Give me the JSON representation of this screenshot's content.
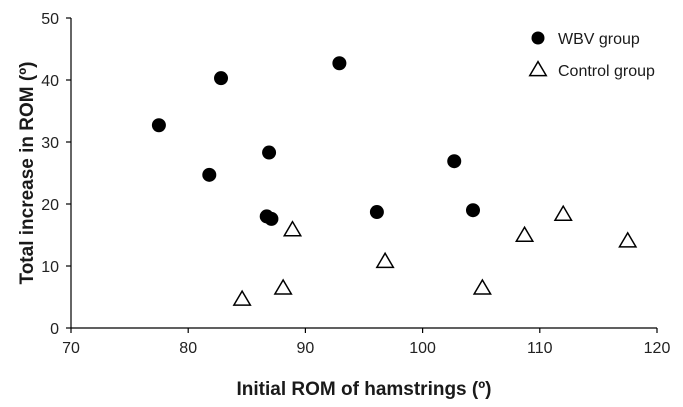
{
  "chart_data": {
    "type": "scatter",
    "title": "",
    "xlabel": "Initial ROM of hamstrings (º)",
    "ylabel": "Total increase in ROM (º)",
    "xlim": [
      70,
      120
    ],
    "ylim": [
      0,
      50
    ],
    "xticks": [
      "70",
      "80",
      "90",
      "100",
      "110",
      "120"
    ],
    "yticks": [
      "0",
      "10",
      "20",
      "30",
      "40",
      "50"
    ],
    "grid": false,
    "legend_position": "top-right",
    "series": [
      {
        "name": "WBV group",
        "marker": "filled-circle",
        "color": "#000000",
        "points": [
          {
            "x": 77.5,
            "y": 32.7
          },
          {
            "x": 81.8,
            "y": 24.7
          },
          {
            "x": 82.8,
            "y": 40.3
          },
          {
            "x": 86.7,
            "y": 18.0
          },
          {
            "x": 86.9,
            "y": 28.3
          },
          {
            "x": 87.1,
            "y": 17.6
          },
          {
            "x": 92.9,
            "y": 42.7
          },
          {
            "x": 96.1,
            "y": 18.7
          },
          {
            "x": 102.7,
            "y": 26.9
          },
          {
            "x": 104.3,
            "y": 19.0
          }
        ]
      },
      {
        "name": "Control group",
        "marker": "open-triangle",
        "color": "#000000",
        "points": [
          {
            "x": 84.6,
            "y": 4.6
          },
          {
            "x": 88.1,
            "y": 6.4
          },
          {
            "x": 88.9,
            "y": 15.8
          },
          {
            "x": 96.8,
            "y": 10.7
          },
          {
            "x": 105.1,
            "y": 6.4
          },
          {
            "x": 108.7,
            "y": 14.9
          },
          {
            "x": 112.0,
            "y": 18.3
          },
          {
            "x": 117.5,
            "y": 14.0
          }
        ]
      }
    ]
  }
}
